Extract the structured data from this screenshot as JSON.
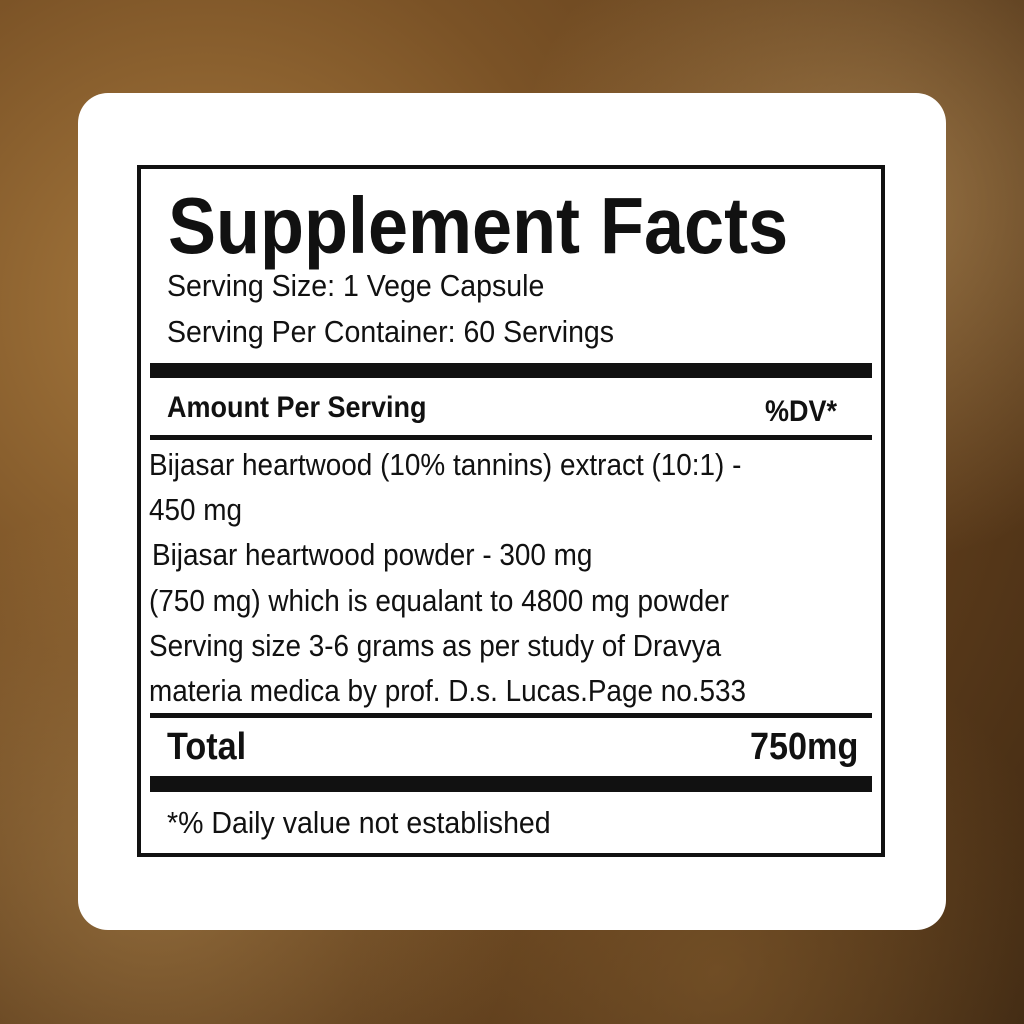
{
  "title": "Supplement Facts",
  "serving_size": "Serving Size: 1 Vege Capsule",
  "servings_per_container": "Serving Per Container: 60 Servings",
  "header": {
    "amount": "Amount Per Serving",
    "dv": "%DV*"
  },
  "ingredients": [
    "Bijasar heartwood (10% tannins) extract (10:1) -",
    "450 mg",
    "Bijasar heartwood powder - 300 mg",
    "(750 mg) which is equalant to 4800 mg powder",
    "Serving size 3-6 grams as per study of Dravya",
    "materia medica by prof. D.s. Lucas.Page no.533"
  ],
  "total": {
    "label": "Total",
    "value": "750mg"
  },
  "footnote": "*% Daily value not established"
}
